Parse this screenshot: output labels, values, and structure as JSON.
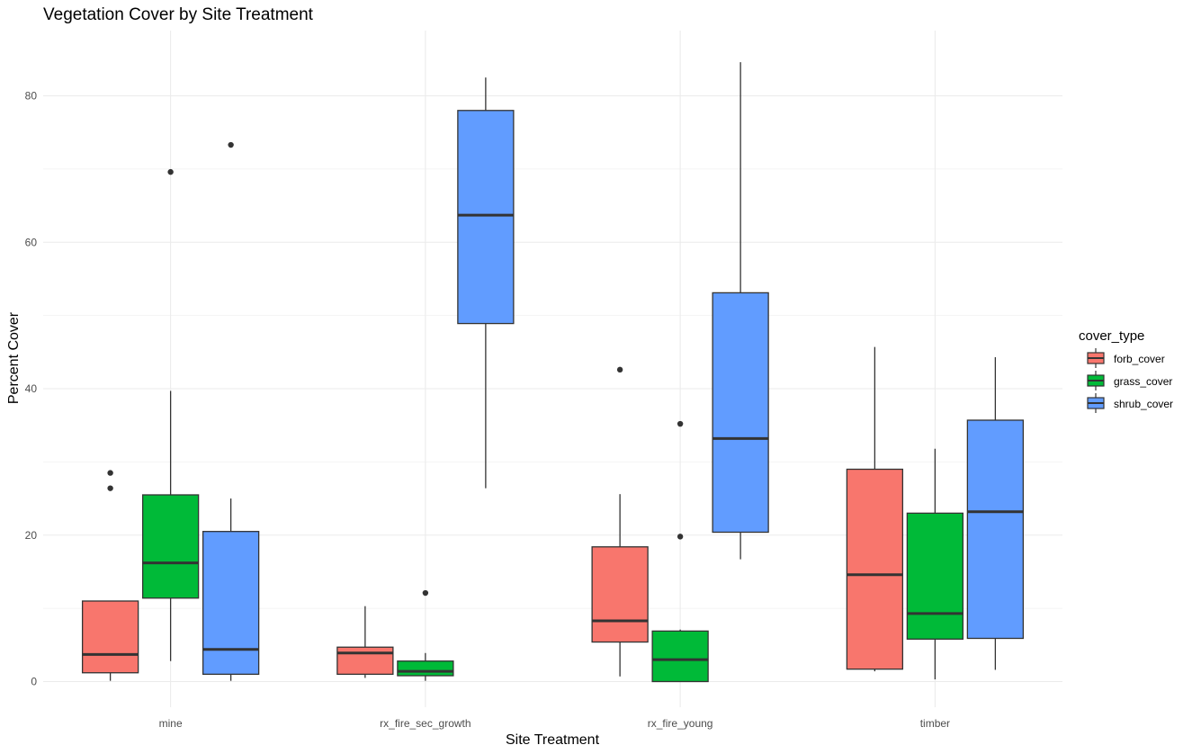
{
  "chart_data": {
    "type": "boxplot",
    "title": "Vegetation Cover by Site Treatment",
    "xlabel": "Site Treatment",
    "ylabel": "Percent Cover",
    "ylim": [
      -3.5,
      88.5
    ],
    "y_ticks": [
      0,
      20,
      40,
      60,
      80
    ],
    "categories": [
      "mine",
      "rx_fire_sec_growth",
      "rx_fire_young",
      "timber"
    ],
    "grid": true,
    "legend_position": "right",
    "legend_title": "cover_type",
    "series": [
      {
        "name": "forb_cover",
        "color": "#F8766D",
        "boxes": [
          {
            "category": "mine",
            "whisker_low": 0.1,
            "q1": 1.2,
            "median": 3.7,
            "q3": 11.0,
            "whisker_high": 11.0,
            "outliers": [
              26.4,
              28.5
            ]
          },
          {
            "category": "rx_fire_sec_growth",
            "whisker_low": 0.5,
            "q1": 1.0,
            "median": 3.9,
            "q3": 4.7,
            "whisker_high": 10.3,
            "outliers": []
          },
          {
            "category": "rx_fire_young",
            "whisker_low": 0.7,
            "q1": 5.4,
            "median": 8.3,
            "q3": 18.4,
            "whisker_high": 25.6,
            "outliers": [
              42.6
            ]
          },
          {
            "category": "timber",
            "whisker_low": 1.4,
            "q1": 1.7,
            "median": 14.6,
            "q3": 29.0,
            "whisker_high": 45.7,
            "outliers": []
          }
        ]
      },
      {
        "name": "grass_cover",
        "color": "#00BA38",
        "boxes": [
          {
            "category": "mine",
            "whisker_low": 2.8,
            "q1": 11.4,
            "median": 16.2,
            "q3": 25.5,
            "whisker_high": 39.7,
            "outliers": [
              69.6
            ]
          },
          {
            "category": "rx_fire_sec_growth",
            "whisker_low": 0.1,
            "q1": 0.8,
            "median": 1.4,
            "q3": 2.8,
            "whisker_high": 3.9,
            "outliers": [
              12.1
            ]
          },
          {
            "category": "rx_fire_young",
            "whisker_low": 0.0,
            "q1": 0.0,
            "median": 3.0,
            "q3": 6.9,
            "whisker_high": 7.1,
            "outliers": [
              19.8,
              35.2
            ]
          },
          {
            "category": "timber",
            "whisker_low": 0.3,
            "q1": 5.8,
            "median": 9.3,
            "q3": 23.0,
            "whisker_high": 31.8,
            "outliers": []
          }
        ]
      },
      {
        "name": "shrub_cover",
        "color": "#619CFF",
        "boxes": [
          {
            "category": "mine",
            "whisker_low": 0.1,
            "q1": 1.0,
            "median": 4.4,
            "q3": 20.5,
            "whisker_high": 25.0,
            "outliers": [
              73.3
            ]
          },
          {
            "category": "rx_fire_sec_growth",
            "whisker_low": 26.4,
            "q1": 48.9,
            "median": 63.7,
            "q3": 78.0,
            "whisker_high": 82.5,
            "outliers": []
          },
          {
            "category": "rx_fire_young",
            "whisker_low": 16.7,
            "q1": 20.4,
            "median": 33.2,
            "q3": 53.1,
            "whisker_high": 84.6,
            "outliers": []
          },
          {
            "category": "timber",
            "whisker_low": 1.6,
            "q1": 5.9,
            "median": 23.2,
            "q3": 35.7,
            "whisker_high": 44.3,
            "outliers": []
          }
        ]
      }
    ]
  }
}
